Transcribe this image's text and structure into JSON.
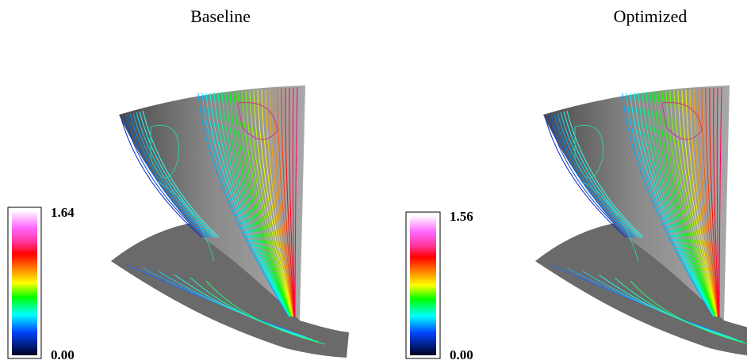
{
  "panels": [
    {
      "title": "Baseline",
      "colorbar": {
        "max": "1.64",
        "min": "0.00"
      }
    },
    {
      "title": "Optimized",
      "colorbar": {
        "max": "1.56",
        "min": "0.00"
      }
    }
  ]
}
